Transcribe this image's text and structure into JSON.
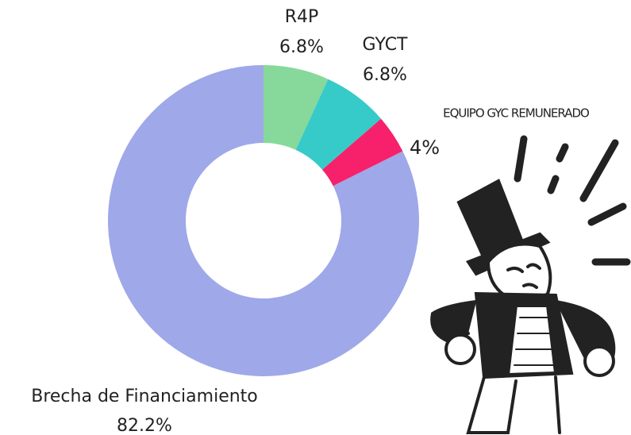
{
  "chart_data": {
    "type": "donut",
    "categories": [
      "R4P",
      "GYCT",
      "EQUIPO GYC REMUNERADO",
      "Brecha de Financiamiento"
    ],
    "values": [
      6.8,
      6.8,
      4,
      82.2
    ],
    "value_labels": [
      "6.8%",
      "6.8%",
      "4%",
      "82.2%"
    ],
    "colors": [
      "#86d99b",
      "#36cbc9",
      "#f7206a",
      "#9fa8e8"
    ]
  }
}
